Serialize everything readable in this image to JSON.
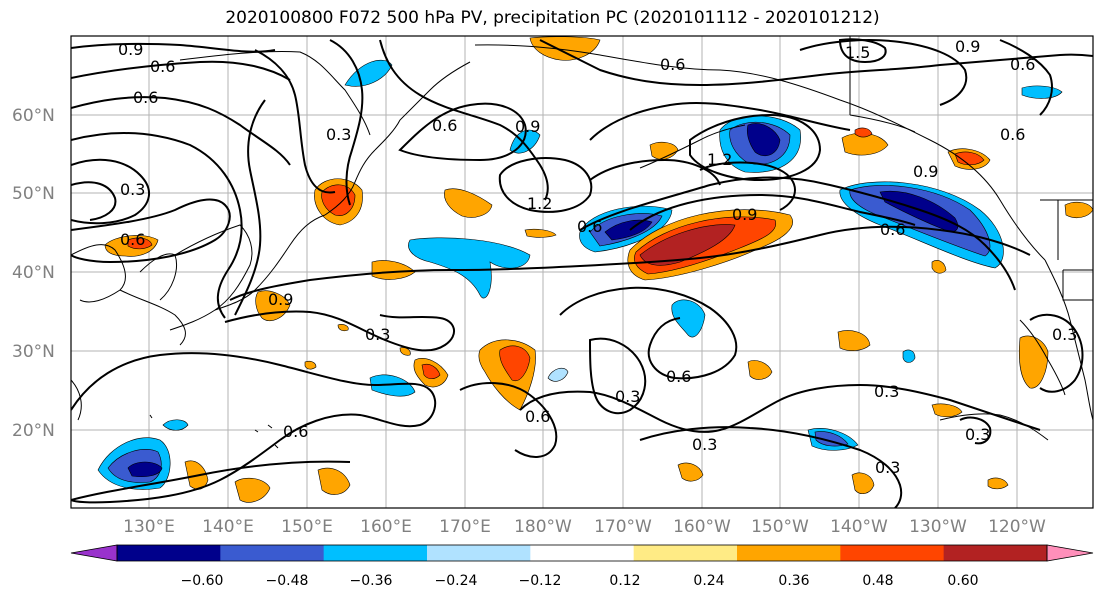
{
  "title": "2020100800 F072 500 hPa PV, precipitation PC (2020101112 - 2020101212)",
  "map": {
    "lat_ticks": [
      "60°N",
      "50°N",
      "40°N",
      "30°N",
      "20°N"
    ],
    "lon_ticks": [
      "130°E",
      "140°E",
      "150°E",
      "160°E",
      "170°E",
      "180°W",
      "170°W",
      "160°W",
      "150°W",
      "140°W",
      "130°W",
      "120°W"
    ],
    "contour_labels": [
      "0.9",
      "0.6",
      "0.6",
      "0.3",
      "0.6",
      "0.9",
      "1.2",
      "0.6",
      "0.9",
      "0.6",
      "0.9",
      "0.6",
      "1.2",
      "0.6",
      "0.6",
      "1.5",
      "0.9",
      "0.9",
      "0.3",
      "0.3",
      "0.6",
      "0.3",
      "0.6",
      "0.6",
      "0.3",
      "0.3",
      "0.3",
      "0.3",
      "0.6",
      "0.3"
    ]
  },
  "colorbar": {
    "colors": [
      "#9932cc",
      "#00008b",
      "#3a5bd0",
      "#00bfff",
      "#b0e2ff",
      "#ffffff",
      "#ffeb85",
      "#ffa500",
      "#ff4500",
      "#b22222",
      "#ff8fba"
    ],
    "tick_labels": [
      "−0.60",
      "−0.48",
      "−0.36",
      "−0.24",
      "−0.12",
      "0.12",
      "0.24",
      "0.36",
      "0.48",
      "0.60"
    ]
  }
}
